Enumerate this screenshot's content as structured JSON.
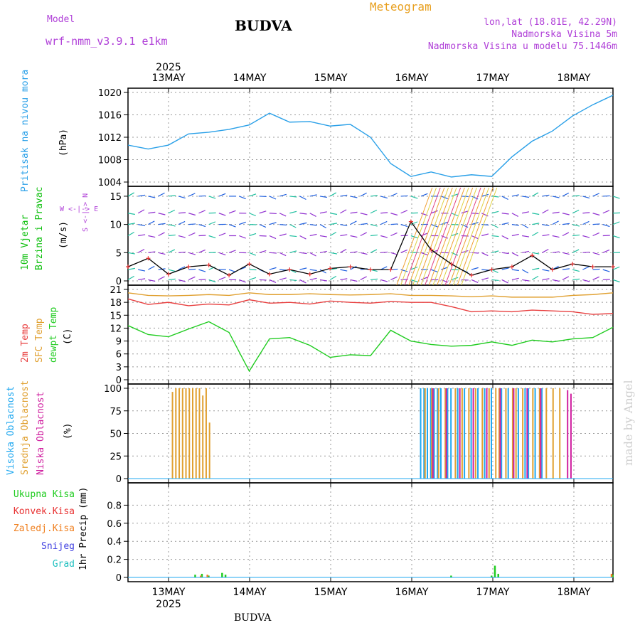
{
  "header": {
    "model_label": "Model",
    "model_name": "wrf-nmm_v3.9.1  e1km",
    "title": "BUDVA",
    "meteogram_label": "Meteogram",
    "coords": "lon,lat (18.81E, 42.29N)",
    "altitude": "Nadmorska Visina 5m",
    "model_altitude": "Nadmorska Visina u modelu 75.1446m"
  },
  "axis": {
    "year": "2025",
    "dates": [
      "13MAY",
      "14MAY",
      "15MAY",
      "16MAY",
      "17MAY",
      "18MAY"
    ]
  },
  "labels": {
    "pressure_title": "Pritisak na nivou mora",
    "pressure_unit": "(hPa)",
    "wind_title_1": "10m Vjetar",
    "wind_title_2": "Brzina i Pravac",
    "wind_unit": "(m/s)",
    "wind_compass_ns": "S <-|-> N",
    "wind_compass_we": "W <-|-> E",
    "temp_title_1": "2m Temp",
    "temp_title_2": "SFC Temp",
    "temp_title_3": "dewpt Temp",
    "temp_unit": "(C)",
    "cloud_title_1": "Visoka Oblacnost",
    "cloud_title_2": "Srednja Oblacnost",
    "cloud_title_3": "Niska  Oblacnost",
    "cloud_unit": "(%)",
    "precip_unit": "1hr Precip (mm)",
    "precip_legend": [
      "Ukupna Kisa",
      "Konvek.Kisa",
      "Zaledj.Kisa",
      "Snijeg",
      "Grad"
    ]
  },
  "credit": "made by Angel",
  "footer": "BUDVA",
  "colors": {
    "pressure": "#2aa0e8",
    "temp2m": "#e84040",
    "sfc": "#e0a030",
    "dewpt": "#20cc20",
    "cloud_high": "#20a8f0",
    "cloud_mid": "#e0a030",
    "cloud_low": "#d020a0",
    "rain_total": "#20cc20",
    "rain_conv": "#e83030",
    "freezing": "#f08020",
    "snow": "#4040e0",
    "hail": "#20c0c0",
    "wind_label": "#10c010",
    "purple_hdr": "#b040d8",
    "orange_hdr": "#e8a020"
  },
  "chart_data": [
    {
      "type": "line",
      "name": "pressure",
      "ylim": [
        1004,
        1020
      ],
      "yticks": [
        1004,
        1008,
        1012,
        1016,
        1020
      ],
      "x_hours": [
        0,
        6,
        12,
        18,
        24,
        30,
        36,
        42,
        48,
        54,
        60,
        66,
        72,
        78,
        84,
        90,
        96,
        102,
        108,
        114,
        120,
        126,
        132,
        138,
        144
      ],
      "series": [
        {
          "name": "Pritisak na nivou mora",
          "values": [
            1010.6,
            1009.9,
            1010.6,
            1012.6,
            1012.9,
            1013.4,
            1014.2,
            1016.3,
            1014.7,
            1014.8,
            1014.0,
            1014.3,
            1012.0,
            1007.3,
            1005.0,
            1005.8,
            1004.9,
            1005.3,
            1005.0,
            1008.5,
            1011.3,
            1013.1,
            1015.8,
            1017.8,
            1019.5
          ]
        }
      ]
    },
    {
      "type": "line",
      "name": "wind_speed",
      "ylim": [
        0,
        16
      ],
      "yticks": [
        0,
        5,
        10,
        15
      ],
      "x_hours": [
        0,
        6,
        12,
        18,
        24,
        30,
        36,
        42,
        48,
        54,
        60,
        66,
        72,
        78,
        84,
        90,
        96,
        102,
        108,
        114,
        120,
        126,
        132,
        138,
        144
      ],
      "series": [
        {
          "name": "10m Vjetar",
          "values": [
            2.5,
            4.0,
            1.2,
            2.5,
            2.8,
            1.0,
            3.0,
            1.2,
            2.0,
            1.2,
            2.2,
            2.5,
            2.0,
            2.0,
            10.5,
            5.5,
            3.0,
            1.0,
            2.0,
            2.5,
            4.5,
            2.0,
            3.0,
            2.5,
            2.5
          ]
        }
      ]
    },
    {
      "type": "line",
      "name": "temperature",
      "ylim": [
        0,
        21
      ],
      "yticks": [
        0,
        3,
        6,
        9,
        12,
        15,
        18,
        21
      ],
      "x_hours": [
        0,
        6,
        12,
        18,
        24,
        30,
        36,
        42,
        48,
        54,
        60,
        66,
        72,
        78,
        84,
        90,
        96,
        102,
        108,
        114,
        120,
        126,
        132,
        138,
        144
      ],
      "series": [
        {
          "name": "2m Temp",
          "values": [
            18.8,
            17.5,
            18.0,
            17.2,
            17.6,
            17.4,
            18.6,
            17.8,
            18.0,
            17.6,
            18.3,
            18.0,
            17.8,
            18.2,
            18.0,
            18.0,
            17.0,
            15.8,
            16.0,
            15.8,
            16.2,
            16.0,
            15.8,
            15.2,
            15.4
          ]
        },
        {
          "name": "SFC Temp",
          "values": [
            20.2,
            19.6,
            19.5,
            19.6,
            19.8,
            19.6,
            20.2,
            19.8,
            19.8,
            20.0,
            19.8,
            19.7,
            19.8,
            20.0,
            19.6,
            19.6,
            19.5,
            19.3,
            19.5,
            19.2,
            19.2,
            19.2,
            19.6,
            19.8,
            20.2
          ]
        },
        {
          "name": "dewpt Temp",
          "values": [
            12.6,
            10.5,
            10.0,
            11.8,
            13.5,
            11.0,
            2.0,
            9.5,
            9.8,
            8.0,
            5.2,
            5.8,
            5.6,
            11.5,
            9.0,
            8.2,
            7.8,
            8.0,
            8.8,
            8.0,
            9.2,
            8.8,
            9.5,
            9.8,
            12.2
          ]
        }
      ]
    },
    {
      "type": "bar",
      "name": "cloudiness",
      "ylim": [
        0,
        100
      ],
      "yticks": [
        0,
        25,
        50,
        75,
        100
      ],
      "series": [
        {
          "name": "Visoka Oblacnost",
          "bars": [
            [
              87,
              100
            ],
            [
              88,
              100
            ],
            [
              89,
              100
            ],
            [
              90,
              100
            ],
            [
              91,
              100
            ],
            [
              92,
              100
            ],
            [
              93,
              100
            ],
            [
              95,
              100
            ],
            [
              96,
              100
            ],
            [
              98,
              100
            ],
            [
              100,
              100
            ],
            [
              102,
              100
            ],
            [
              104,
              100
            ],
            [
              106,
              100
            ],
            [
              108,
              100
            ],
            [
              111,
              100
            ],
            [
              113,
              100
            ],
            [
              116,
              100
            ],
            [
              118,
              100
            ],
            [
              119,
              100
            ],
            [
              121,
              100
            ],
            [
              123,
              100
            ]
          ]
        },
        {
          "name": "Srednja Oblacnost",
          "bars": [
            [
              13,
              96
            ],
            [
              14,
              100
            ],
            [
              15,
              100
            ],
            [
              16,
              100
            ],
            [
              17,
              100
            ],
            [
              18,
              100
            ],
            [
              19,
              100
            ],
            [
              20,
              100
            ],
            [
              21,
              100
            ],
            [
              22,
              92
            ],
            [
              23,
              100
            ],
            [
              24,
              62
            ],
            [
              88,
              100
            ],
            [
              90,
              100
            ],
            [
              92,
              100
            ],
            [
              94,
              100
            ],
            [
              97,
              100
            ],
            [
              99,
              100
            ],
            [
              101,
              100
            ],
            [
              103,
              100
            ],
            [
              105,
              100
            ],
            [
              107,
              100
            ],
            [
              109,
              100
            ],
            [
              110,
              100
            ],
            [
              112,
              100
            ],
            [
              114,
              100
            ],
            [
              115,
              100
            ],
            [
              117,
              100
            ],
            [
              120,
              100
            ],
            [
              122,
              100
            ],
            [
              124,
              100
            ],
            [
              126,
              100
            ],
            [
              128,
              100
            ]
          ]
        },
        {
          "name": "Niska  Oblacnost",
          "bars": [
            [
              90,
              100
            ],
            [
              94,
              100
            ],
            [
              98,
              100
            ],
            [
              102,
              100
            ],
            [
              106,
              100
            ],
            [
              110,
              100
            ],
            [
              114,
              100
            ],
            [
              118,
              100
            ],
            [
              122,
              100
            ],
            [
              130,
              98
            ],
            [
              131,
              94
            ]
          ]
        }
      ]
    },
    {
      "type": "bar",
      "name": "precipitation",
      "ylim": [
        0,
        1.0
      ],
      "yticks": [
        0,
        0.2,
        0.4,
        0.6,
        0.8
      ],
      "series": [
        {
          "name": "Ukupna Kisa",
          "bars": [
            [
              20,
              0.03
            ],
            [
              22,
              0.04
            ],
            [
              24,
              0.02
            ],
            [
              28,
              0.05
            ],
            [
              29,
              0.03
            ],
            [
              96,
              0.02
            ],
            [
              108,
              0.02
            ],
            [
              109,
              0.13
            ],
            [
              110,
              0.04
            ],
            [
              144,
              0.03
            ]
          ]
        },
        {
          "name": "Konvek.Kisa",
          "bars": []
        },
        {
          "name": "Zaledj.Kisa",
          "bars": [
            [
              21,
              0.02
            ],
            [
              23,
              0.03
            ],
            [
              143,
              0.04
            ]
          ]
        },
        {
          "name": "Snijeg",
          "bars": []
        },
        {
          "name": "Grad",
          "bars": []
        }
      ]
    }
  ]
}
